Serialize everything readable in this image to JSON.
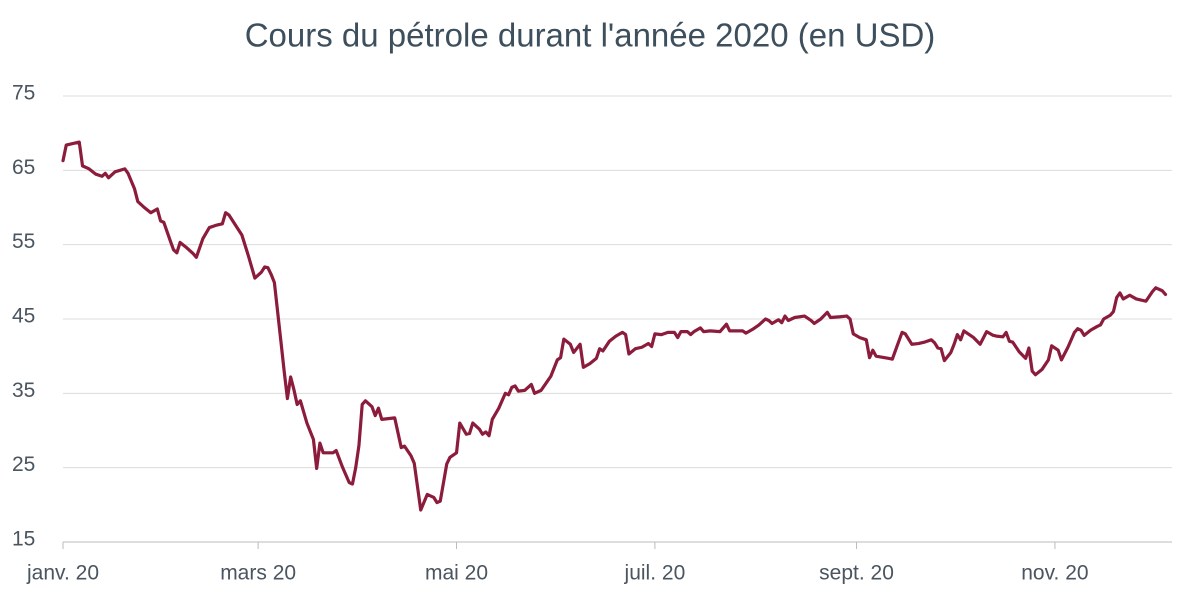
{
  "chart_data": {
    "type": "line",
    "title": "Cours du pétrole durant l'année 2020 (en USD)",
    "x": [
      0,
      1,
      3,
      5,
      6,
      8,
      10,
      12,
      13,
      14,
      16,
      19,
      20,
      22,
      23,
      25,
      27,
      29,
      30,
      31,
      33,
      34,
      35,
      36,
      38,
      40,
      41,
      43,
      45,
      47,
      49,
      50,
      51,
      55,
      57,
      59,
      61,
      62,
      63,
      64,
      65,
      67,
      68,
      69,
      70,
      71,
      72,
      73,
      75,
      77,
      78,
      79,
      80,
      83,
      84,
      86,
      88,
      89,
      90,
      91,
      92,
      93,
      95,
      96,
      97,
      98,
      102,
      104,
      105,
      107,
      108,
      110,
      112,
      114,
      115,
      116,
      118,
      119,
      121,
      122,
      124,
      125,
      126,
      128,
      129,
      130,
      131,
      132,
      134,
      136,
      137,
      138,
      139,
      140,
      142,
      144,
      145,
      147,
      150,
      152,
      153,
      154,
      156,
      157,
      159,
      160,
      162,
      164,
      165,
      166,
      168,
      170,
      172,
      173,
      174,
      176,
      178,
      180,
      181,
      182,
      184,
      186,
      188,
      189,
      190,
      192,
      193,
      194,
      196,
      197,
      199,
      202,
      204,
      205,
      209,
      210,
      212,
      214,
      216,
      217,
      218,
      220,
      221,
      222,
      223,
      225,
      228,
      230,
      231,
      233,
      235,
      236,
      239,
      241,
      242,
      243,
      245,
      247,
      248,
      249,
      250,
      254,
      255,
      256,
      258,
      259,
      261,
      263,
      265,
      267,
      268,
      269,
      270,
      271,
      273,
      274,
      275,
      276,
      277,
      280,
      282,
      284,
      286,
      287,
      289,
      290,
      291,
      292,
      294,
      296,
      297,
      298,
      299,
      301,
      303,
      304,
      306,
      307,
      309,
      311,
      312,
      313,
      314,
      316,
      318,
      319,
      320,
      322,
      323,
      324,
      325,
      326,
      328,
      330,
      333,
      335,
      336,
      338,
      339
    ],
    "series": [
      {
        "name": "Cours",
        "color": "#8c1c3c",
        "values": [
          66.3,
          68.4,
          68.6,
          68.8,
          65.6,
          65.2,
          64.5,
          64.2,
          64.6,
          64.0,
          64.8,
          65.2,
          64.6,
          62.5,
          60.8,
          60.0,
          59.3,
          59.8,
          58.2,
          58.0,
          55.5,
          54.3,
          53.9,
          55.3,
          54.6,
          53.8,
          53.3,
          55.8,
          57.3,
          57.6,
          57.8,
          59.3,
          59.0,
          56.3,
          53.5,
          50.5,
          51.3,
          52.0,
          51.9,
          51.0,
          49.9,
          42.0,
          38.0,
          34.3,
          37.2,
          35.5,
          33.5,
          34.0,
          31.0,
          28.8,
          24.9,
          28.3,
          27.0,
          27.0,
          27.3,
          25.0,
          23.0,
          22.8,
          25.0,
          28.0,
          33.5,
          34.0,
          33.2,
          32.0,
          33.0,
          31.5,
          31.7,
          27.7,
          27.9,
          26.6,
          25.6,
          19.3,
          21.4,
          21.0,
          20.3,
          20.5,
          25.5,
          26.4,
          27.0,
          31.0,
          29.5,
          29.6,
          31.0,
          30.2,
          29.5,
          29.8,
          29.3,
          31.5,
          33.0,
          35.0,
          34.8,
          35.8,
          36.0,
          35.3,
          35.4,
          36.2,
          35.0,
          35.4,
          37.3,
          39.5,
          39.8,
          42.3,
          41.6,
          40.5,
          41.6,
          38.5,
          39.0,
          39.7,
          41.0,
          40.7,
          42.0,
          42.7,
          43.2,
          42.9,
          40.3,
          41.0,
          41.2,
          41.7,
          41.3,
          43.0,
          42.9,
          43.2,
          43.2,
          42.5,
          43.3,
          43.3,
          42.9,
          43.3,
          43.8,
          43.3,
          43.4,
          43.3,
          44.3,
          43.4,
          43.4,
          43.1,
          43.6,
          44.2,
          45.0,
          44.8,
          44.4,
          44.9,
          44.5,
          45.4,
          44.8,
          45.2,
          45.4,
          44.8,
          44.4,
          45.0,
          45.9,
          45.2,
          45.3,
          45.4,
          45.0,
          43.0,
          42.5,
          42.2,
          39.8,
          40.8,
          40.0,
          39.7,
          39.6,
          40.8,
          43.2,
          43.0,
          41.6,
          41.7,
          41.9,
          42.2,
          41.8,
          41.1,
          41.0,
          39.4,
          40.5,
          41.6,
          42.9,
          42.2,
          43.4,
          42.5,
          41.6,
          43.3,
          42.8,
          42.7,
          42.6,
          43.2,
          42.0,
          41.9,
          40.6,
          39.7,
          41.1,
          38.0,
          37.5,
          38.2,
          39.5,
          41.4,
          40.8,
          39.5,
          41.2,
          43.2,
          43.7,
          43.5,
          42.8,
          43.5,
          44.0,
          44.2,
          45.0,
          45.5,
          46.0,
          47.9,
          48.5,
          47.7,
          48.2,
          47.7,
          47.4,
          48.7,
          49.2,
          48.8,
          48.3
        ]
      }
    ],
    "xlim": [
      0,
      341
    ],
    "xticks": [
      {
        "value": 0,
        "label": "janv. 20"
      },
      {
        "value": 60,
        "label": "mars 20"
      },
      {
        "value": 121,
        "label": "mai 20"
      },
      {
        "value": 182,
        "label": "juil. 20"
      },
      {
        "value": 244,
        "label": "sept. 20"
      },
      {
        "value": 305,
        "label": "nov. 20"
      }
    ],
    "ylim": [
      15,
      75
    ],
    "yticks": [
      15,
      25,
      35,
      45,
      55,
      65,
      75
    ],
    "grid": true
  }
}
